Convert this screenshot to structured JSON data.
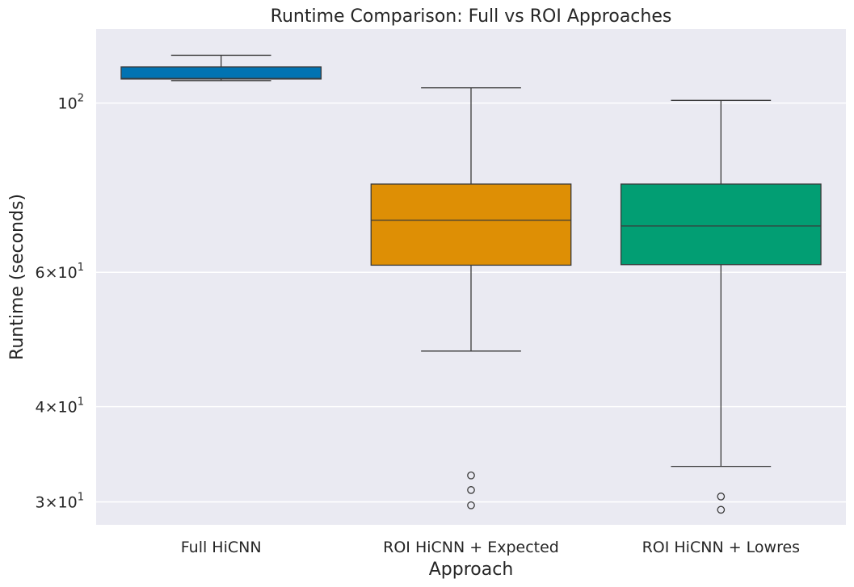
{
  "chart_data": {
    "type": "box",
    "title": "Runtime Comparison: Full vs ROI Approaches",
    "xlabel": "Approach",
    "ylabel": "Runtime (seconds)",
    "y_scale": "log",
    "ylim": [
      28,
      125
    ],
    "grid": true,
    "legend": "none",
    "background": "#eaeaf2",
    "y_ticks": [
      {
        "value": 100,
        "label": "10",
        "sup": "2"
      },
      {
        "value": 60,
        "label": "6×10",
        "sup": "1"
      },
      {
        "value": 40,
        "label": "4×10",
        "sup": "1"
      },
      {
        "value": 30,
        "label": "3×10",
        "sup": "1"
      }
    ],
    "categories": [
      "Full HiCNN",
      "ROI HiCNN + Expected",
      "ROI HiCNN + Lowres"
    ],
    "boxes": [
      {
        "name": "Full HiCNN",
        "color": "#0173b2",
        "whisker_low": 107,
        "q1": 107.5,
        "median": 107.7,
        "q3": 111.5,
        "whisker_high": 115.5,
        "outliers": []
      },
      {
        "name": "ROI HiCNN + Expected",
        "color": "#de8f05",
        "whisker_low": 47.3,
        "q1": 61.3,
        "median": 70.2,
        "q3": 78.3,
        "whisker_high": 104.7,
        "outliers": [
          32.5,
          31.1,
          29.7
        ]
      },
      {
        "name": "ROI HiCNN + Lowres",
        "color": "#029e73",
        "whisker_low": 33.4,
        "q1": 61.4,
        "median": 69.0,
        "q3": 78.3,
        "whisker_high": 100.8,
        "outliers": [
          30.5,
          29.3
        ]
      }
    ]
  }
}
